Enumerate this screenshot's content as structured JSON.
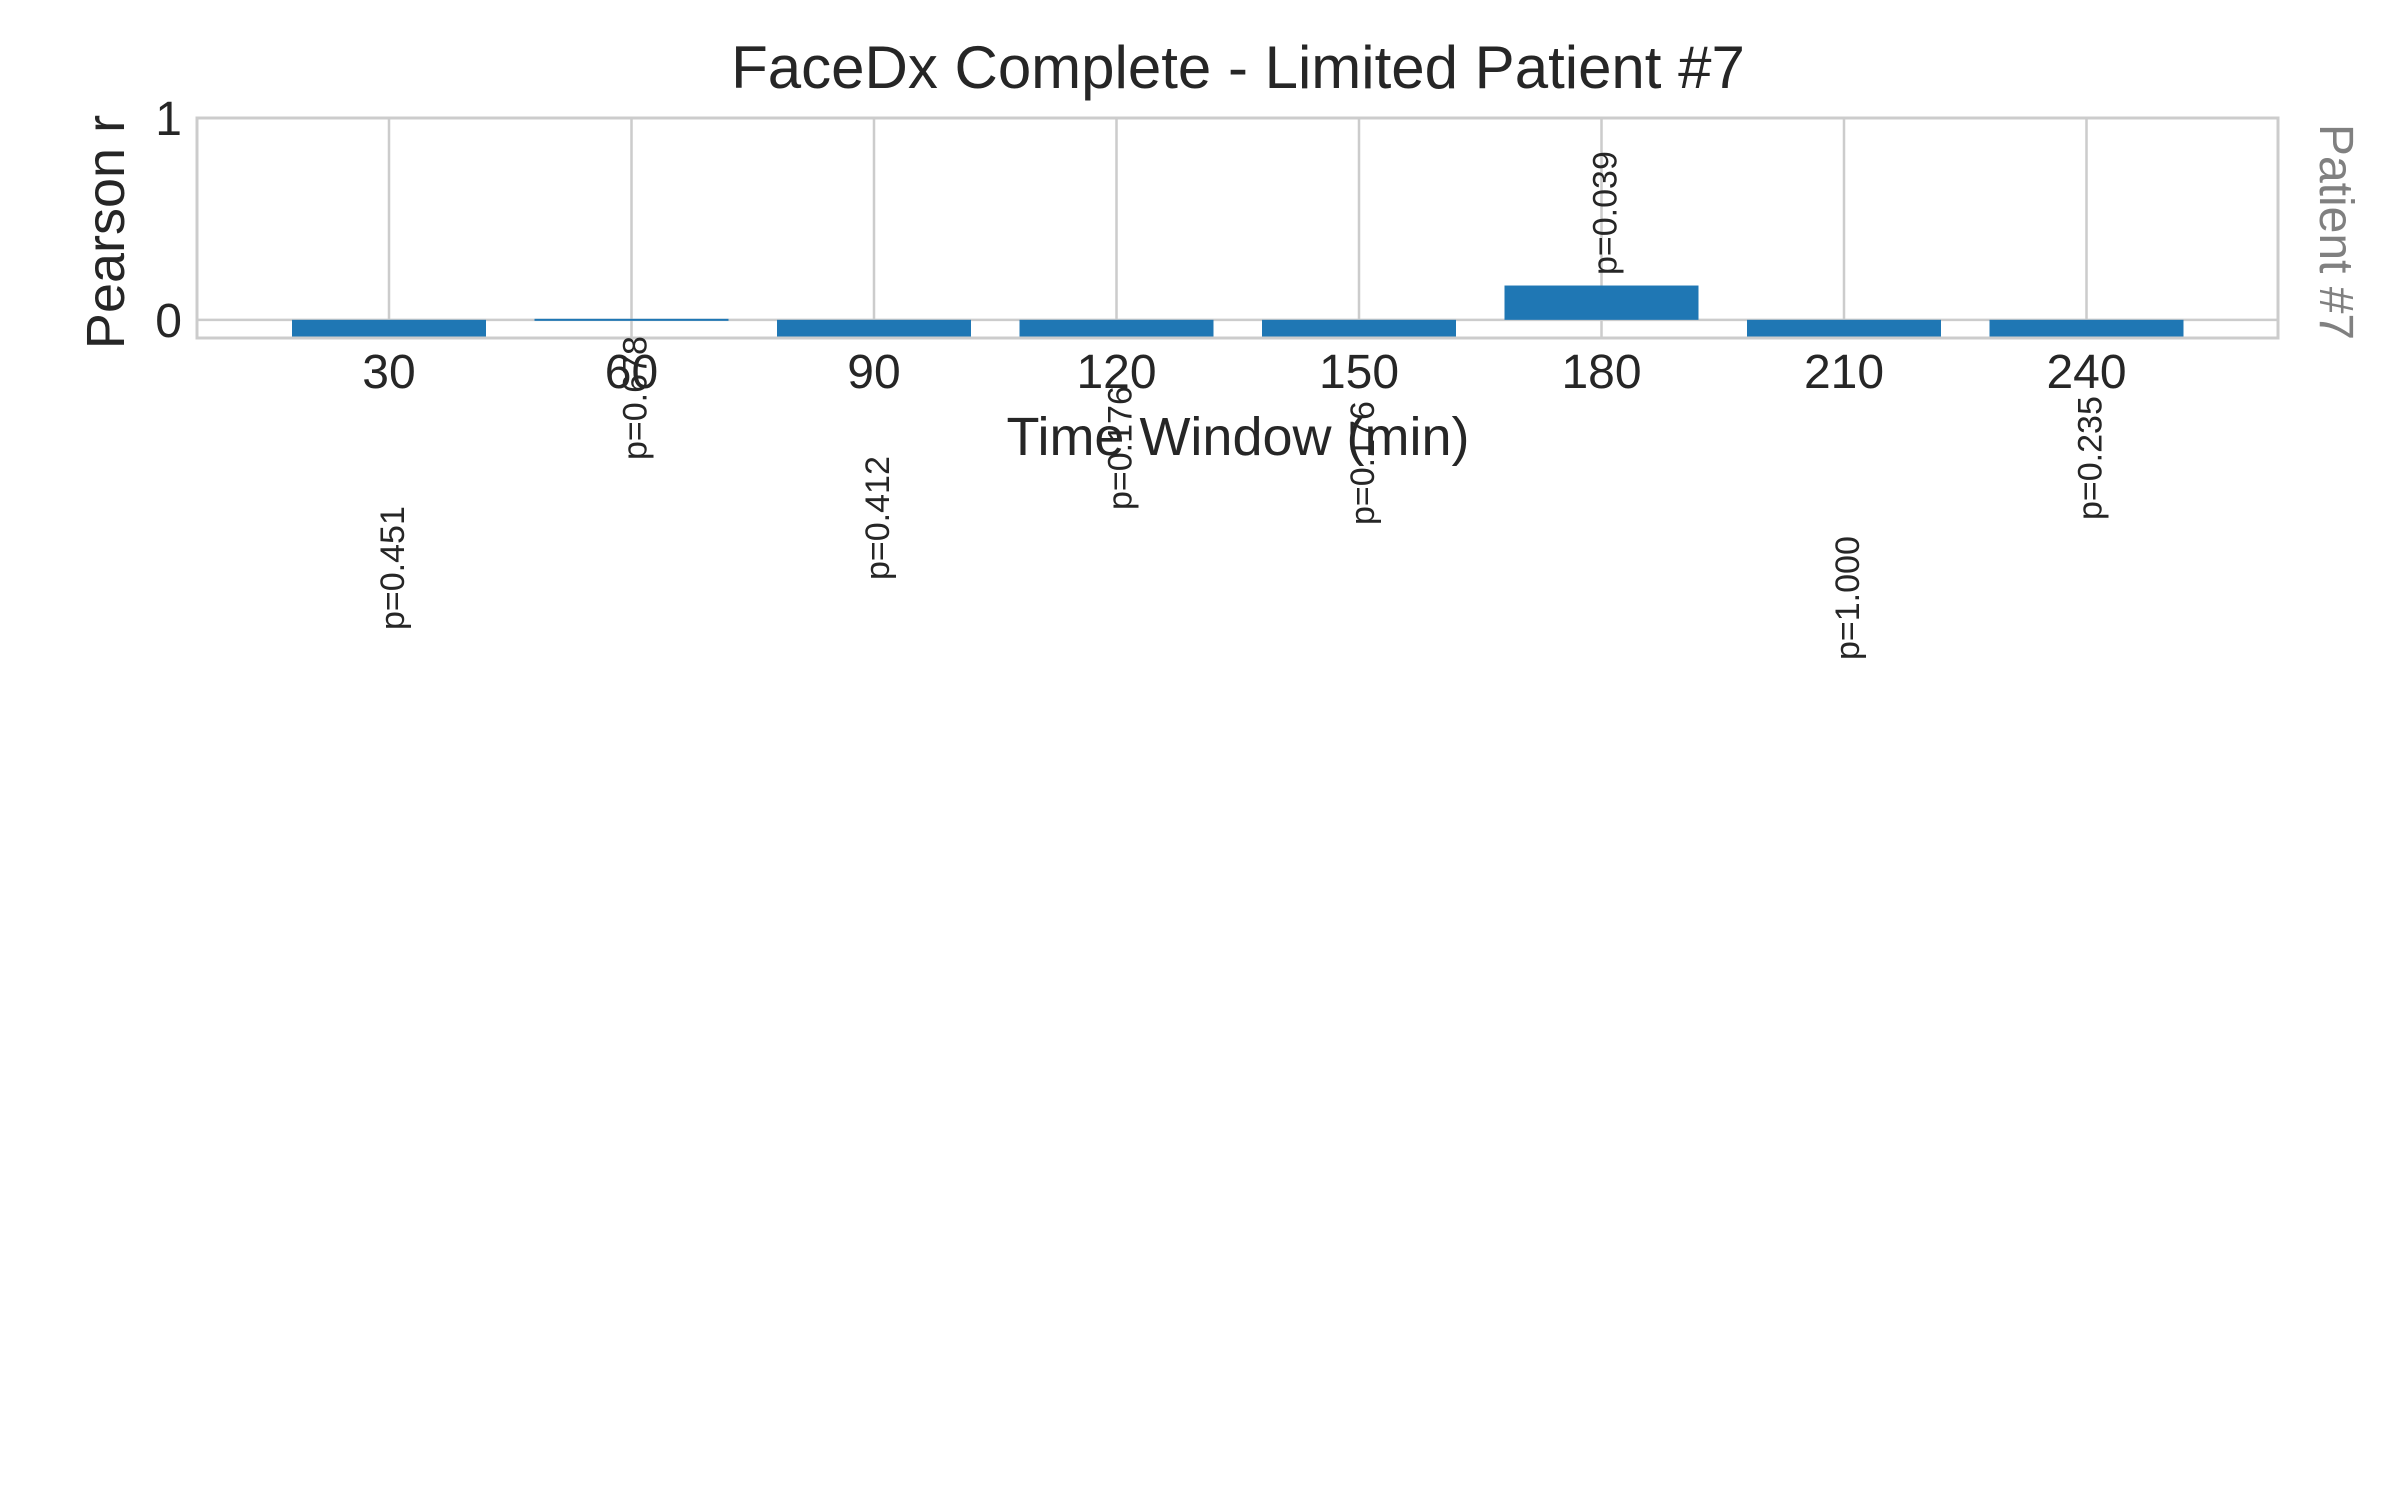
{
  "chart_data": {
    "type": "bar",
    "title": "FaceDx Complete - Limited Patient #7",
    "xlabel": "Time Window (min)",
    "ylabel": "Pearson r",
    "side_label": "Patient #7",
    "categories": [
      "30",
      "60",
      "90",
      "120",
      "150",
      "180",
      "210",
      "240"
    ],
    "series": [
      {
        "values": [
          -0.09,
          -0.005,
          -0.09,
          -0.09,
          -0.09,
          0.17,
          -0.09,
          -0.09
        ],
        "p_labels": [
          "p=0.451",
          "p=0.678",
          "p=0.412",
          "p=0.176",
          "p=0.176",
          "p=0.039",
          "p=1.000",
          "p=0.235"
        ],
        "color": "#1f77b4"
      }
    ],
    "ylim": [
      -0.09,
      1.0
    ],
    "yticks": [
      0,
      1
    ],
    "grid": true,
    "colors": {
      "bar": "#1f77b4",
      "grid": "#cccccc",
      "spine": "#cccccc",
      "text": "#262626",
      "side_label": "#808080"
    }
  }
}
